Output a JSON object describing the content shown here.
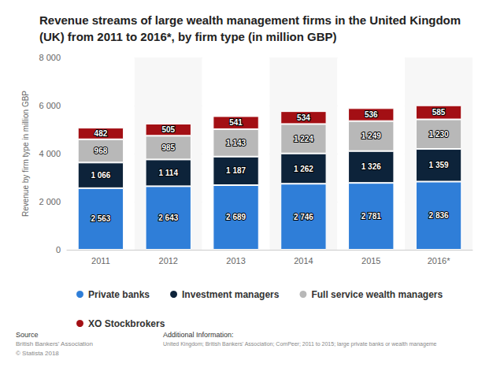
{
  "chart_data": {
    "type": "bar",
    "title": "Revenue streams of large wealth management firms in the United Kingdom (UK) from 2011 to 2016*, by firm type (in million GBP)",
    "y_label": "Revenue by firm type in million GBP",
    "categories": [
      "2011",
      "2012",
      "2013",
      "2014",
      "2015",
      "2016*"
    ],
    "series": [
      {
        "name": "Private banks",
        "color": "#2f7ed8",
        "values": [
          2563,
          2643,
          2689,
          2746,
          2781,
          2836
        ],
        "value_labels": [
          "2 563",
          "2 643",
          "2 689",
          "2 746",
          "2 781",
          "2 836"
        ]
      },
      {
        "name": "Investment managers",
        "color": "#0d233a",
        "values": [
          1066,
          1114,
          1187,
          1262,
          1326,
          1359
        ],
        "value_labels": [
          "1 066",
          "1 114",
          "1 187",
          "1 262",
          "1 326",
          "1 359"
        ]
      },
      {
        "name": "Full service wealth managers",
        "color": "#b8b8b8",
        "values": [
          968,
          985,
          1143,
          1224,
          1249,
          1230
        ],
        "value_labels": [
          "968",
          "985",
          "1 143",
          "1 224",
          "1 249",
          "1 230"
        ]
      },
      {
        "name": "XO Stockbrokers",
        "color": "#a30f14",
        "values": [
          482,
          505,
          541,
          534,
          536,
          585
        ],
        "value_labels": [
          "482",
          "505",
          "541",
          "534",
          "536",
          "585"
        ]
      }
    ],
    "ylim": [
      0,
      8000
    ],
    "yticks": [
      0,
      {
        "value": 2000,
        "label": "2 000"
      },
      {
        "value": 4000,
        "label": "4 000"
      },
      {
        "value": 6000,
        "label": "6 000"
      },
      {
        "value": 8000,
        "label": "8 000"
      }
    ],
    "stacked": true,
    "data_labels": true,
    "grid": true,
    "legend": "bottom-left",
    "source": {
      "heading": "Source",
      "lines": [
        "British Bankers' Association",
        "© Statista 2018"
      ]
    },
    "additional_information": {
      "heading": "Additional Information:",
      "text": "United Kingdom; British Bankers' Association; ComPeer; 2011 to 2015; large private banks or wealth manageme"
    }
  }
}
